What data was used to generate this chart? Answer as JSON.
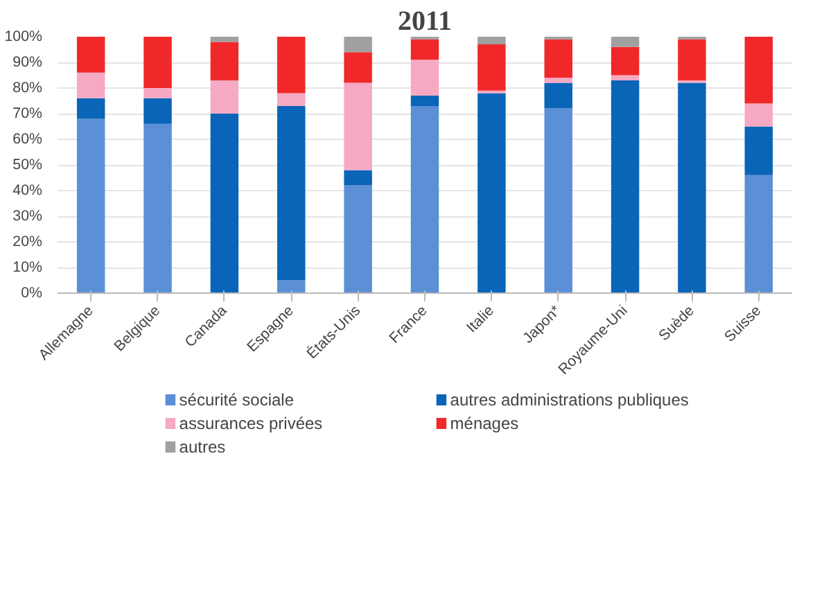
{
  "chart_data": {
    "type": "bar",
    "title": "2011",
    "stacked": true,
    "categories": [
      "Allemagne",
      "Belgique",
      "Canada",
      "Espagne",
      "États-Unis",
      "France",
      "Italie",
      "Japon*",
      "Royaume-Uni",
      "Suède",
      "Suisse"
    ],
    "series": [
      {
        "name": "sécurité sociale",
        "color": "#5b8fd6",
        "values": [
          68,
          66,
          0,
          5,
          42,
          73,
          0,
          72,
          0,
          0,
          46
        ]
      },
      {
        "name": "autres administrations publiques",
        "color": "#0a64b8",
        "values": [
          8,
          10,
          70,
          68,
          6,
          4,
          78,
          10,
          83,
          82,
          19
        ]
      },
      {
        "name": "assurances privées",
        "color": "#f7a9c4",
        "values": [
          10,
          4,
          13,
          5,
          34,
          14,
          1,
          2,
          2,
          1,
          9
        ]
      },
      {
        "name": "ménages",
        "color": "#f0282a",
        "values": [
          14,
          20,
          15,
          22,
          12,
          8,
          18,
          15,
          11,
          16,
          26
        ]
      },
      {
        "name": "autres",
        "color": "#a0a0a0",
        "values": [
          0,
          0,
          2,
          0,
          6,
          1,
          3,
          1,
          4,
          1,
          0
        ]
      }
    ],
    "ylim": [
      0,
      100
    ],
    "yticks": [
      {
        "value": 0,
        "label": "0%"
      },
      {
        "value": 10,
        "label": "10%"
      },
      {
        "value": 20,
        "label": "20%"
      },
      {
        "value": 30,
        "label": "30%"
      },
      {
        "value": 40,
        "label": "40%"
      },
      {
        "value": 50,
        "label": "50%"
      },
      {
        "value": 60,
        "label": "60%"
      },
      {
        "value": 70,
        "label": "70%"
      },
      {
        "value": 80,
        "label": "80%"
      },
      {
        "value": 90,
        "label": "90%"
      },
      {
        "value": 100,
        "label": "100%"
      }
    ],
    "grid": "y",
    "legend": "bottom"
  }
}
